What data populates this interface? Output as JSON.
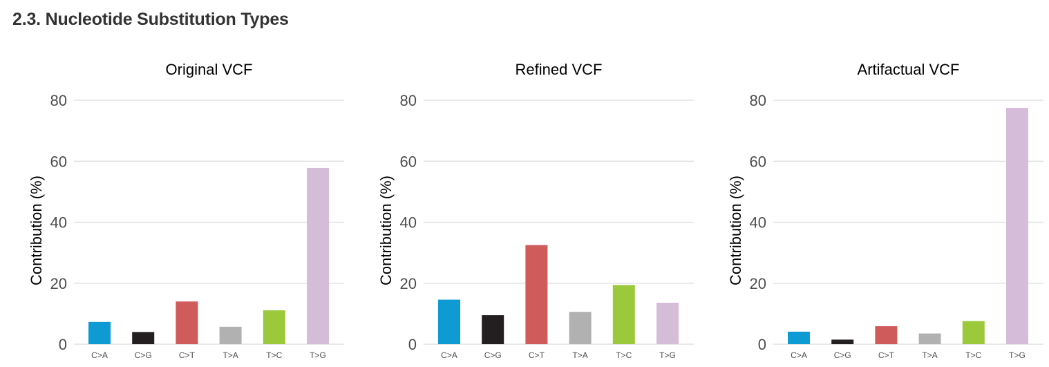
{
  "section": {
    "title": "2.3. Nucleotide Substitution Types"
  },
  "colors": {
    "C>A": "#0e9ad3",
    "C>G": "#231f20",
    "C>T": "#cf5c5b",
    "T>A": "#b1b1b1",
    "T>C": "#9cc83c",
    "T>G": "#d5bcd9",
    "grid": "#dcdcdc",
    "axis_text": "#4d4d4d"
  },
  "chart_data": [
    {
      "type": "bar",
      "title": "Original VCF",
      "xlabel": "",
      "ylabel": "Contribution (%)",
      "categories": [
        "C>A",
        "C>G",
        "C>T",
        "T>A",
        "T>C",
        "T>G"
      ],
      "values": [
        7.3,
        4.0,
        14.0,
        5.7,
        11.1,
        57.8
      ],
      "ylim": [
        0,
        80
      ],
      "yticks": [
        0,
        20,
        40,
        60,
        80
      ],
      "grid": true,
      "legend": "none"
    },
    {
      "type": "bar",
      "title": "Refined VCF",
      "xlabel": "",
      "ylabel": "Contribution (%)",
      "categories": [
        "C>A",
        "C>G",
        "C>T",
        "T>A",
        "T>C",
        "T>G"
      ],
      "values": [
        14.6,
        9.5,
        32.5,
        10.6,
        19.4,
        13.6
      ],
      "ylim": [
        0,
        80
      ],
      "yticks": [
        0,
        20,
        40,
        60,
        80
      ],
      "grid": true,
      "legend": "none"
    },
    {
      "type": "bar",
      "title": "Artifactual VCF",
      "xlabel": "",
      "ylabel": "Contribution (%)",
      "categories": [
        "C>A",
        "C>G",
        "C>T",
        "T>A",
        "T>C",
        "T>G"
      ],
      "values": [
        4.1,
        1.5,
        5.9,
        3.5,
        7.6,
        77.5
      ],
      "ylim": [
        0,
        80
      ],
      "yticks": [
        0,
        20,
        40,
        60,
        80
      ],
      "grid": true,
      "legend": "none"
    }
  ]
}
